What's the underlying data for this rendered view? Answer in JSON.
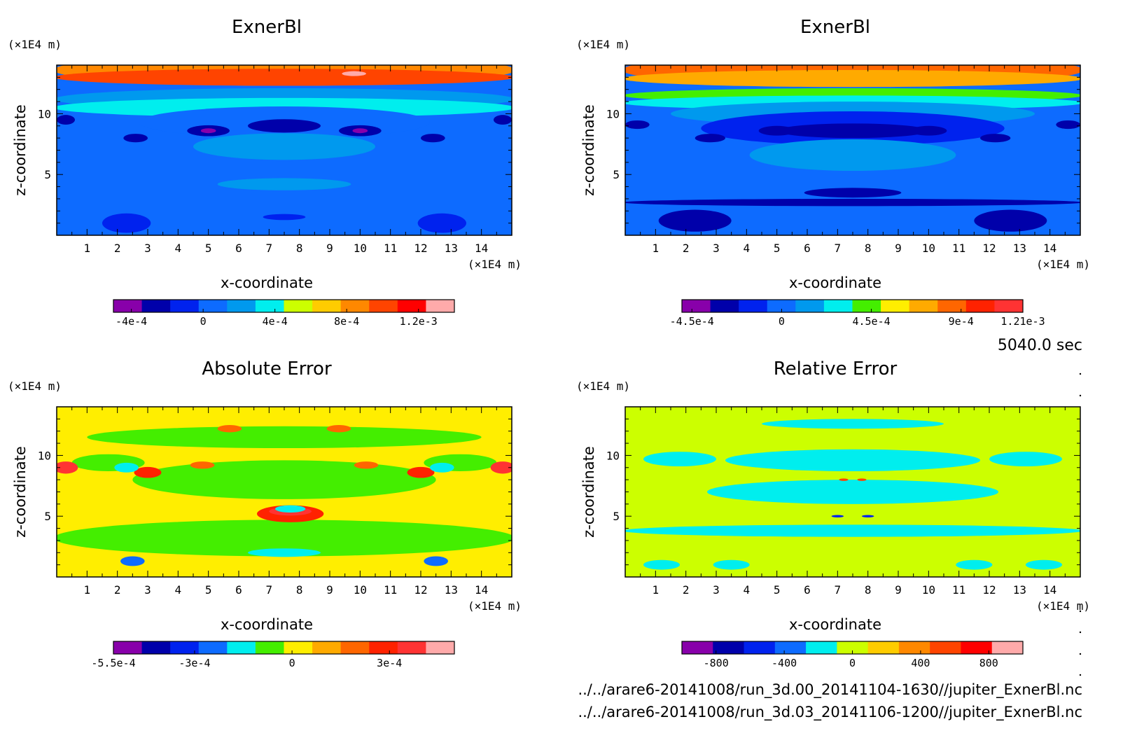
{
  "figure": {
    "time_label": "5040.0 sec",
    "file_paths": [
      "../../arare6-20141008/run_3d.00_20141104-1630//jupiter_ExnerBl.nc",
      "../../arare6-20141008/run_3d.03_20141106-1200//jupiter_ExnerBl.nc"
    ]
  },
  "chart_data": [
    {
      "type": "heatmap",
      "title": "ExnerBl",
      "xlabel": "x-coordinate",
      "ylabel": "z-coordinate",
      "x_unit": "(×1E4 m)",
      "y_unit": "(×1E4 m)",
      "xlim": [
        0,
        15
      ],
      "ylim": [
        0,
        14
      ],
      "x_ticks": [
        "1",
        "2",
        "3",
        "4",
        "5",
        "6",
        "7",
        "8",
        "9",
        "10",
        "11",
        "12",
        "13",
        "14"
      ],
      "y_ticks": [
        "5",
        "10"
      ],
      "colorbar": {
        "range": [
          -0.0005,
          0.0014
        ],
        "colors": [
          "#8800aa",
          "#0000aa",
          "#0022ee",
          "#0d6bff",
          "#0099ee",
          "#00eeee",
          "#ccff00",
          "#ffcc00",
          "#ff8800",
          "#ff4400",
          "#ff0000",
          "#ffaaaa"
        ],
        "tick_labels": [
          "-4e-4",
          "0",
          "4e-4",
          "8e-4",
          "1.2e-3"
        ],
        "tick_values": [
          -0.0004,
          0,
          0.0004,
          0.0008,
          0.0012
        ]
      }
    },
    {
      "type": "heatmap",
      "title": "ExnerBl",
      "xlabel": "x-coordinate",
      "ylabel": "z-coordinate",
      "x_unit": "(×1E4 m)",
      "y_unit": "(×1E4 m)",
      "xlim": [
        0,
        15
      ],
      "ylim": [
        0,
        14
      ],
      "x_ticks": [
        "1",
        "2",
        "3",
        "4",
        "5",
        "6",
        "7",
        "8",
        "9",
        "10",
        "11",
        "12",
        "13",
        "14"
      ],
      "y_ticks": [
        "5",
        "10"
      ],
      "colorbar": {
        "range": [
          -0.0005,
          0.00121
        ],
        "colors": [
          "#8800aa",
          "#0000aa",
          "#0022ee",
          "#0d6bff",
          "#0099ee",
          "#00eeee",
          "#44ee00",
          "#ffee00",
          "#ffaa00",
          "#ff6600",
          "#ff2200",
          "#ff3333"
        ],
        "tick_labels": [
          "-4.5e-4",
          "0",
          "4.5e-4",
          "9e-4",
          "1.21e-3"
        ],
        "tick_values": [
          -0.00045,
          0,
          0.00045,
          0.0009,
          0.00121
        ]
      }
    },
    {
      "type": "heatmap",
      "title": "Absolute Error",
      "xlabel": "x-coordinate",
      "ylabel": "z-coordinate",
      "x_unit": "(×1E4 m)",
      "y_unit": "(×1E4 m)",
      "xlim": [
        0,
        15
      ],
      "ylim": [
        0,
        14
      ],
      "x_ticks": [
        "1",
        "2",
        "3",
        "4",
        "5",
        "6",
        "7",
        "8",
        "9",
        "10",
        "11",
        "12",
        "13",
        "14"
      ],
      "y_ticks": [
        "5",
        "10"
      ],
      "colorbar": {
        "range": [
          -0.00055,
          0.0005
        ],
        "colors": [
          "#8800aa",
          "#0000aa",
          "#0022ee",
          "#0d6bff",
          "#00eeee",
          "#44ee00",
          "#ffee00",
          "#ffaa00",
          "#ff6600",
          "#ff2200",
          "#ff3333",
          "#ffaaaa"
        ],
        "tick_labels": [
          "-5.5e-4",
          "-3e-4",
          "0",
          "3e-4"
        ],
        "tick_values": [
          -0.00055,
          -0.0003,
          0,
          0.0003
        ]
      }
    },
    {
      "type": "heatmap",
      "title": "Relative Error",
      "xlabel": "x-coordinate",
      "ylabel": "z-coordinate",
      "x_unit": "(×1E4 m)",
      "y_unit": "(×1E4 m)",
      "xlim": [
        0,
        15
      ],
      "ylim": [
        0,
        14
      ],
      "x_ticks": [
        "1",
        "2",
        "3",
        "4",
        "5",
        "6",
        "7",
        "8",
        "9",
        "10",
        "11",
        "12",
        "13",
        "14"
      ],
      "y_ticks": [
        "5",
        "10"
      ],
      "colorbar": {
        "range": [
          -1000,
          1000
        ],
        "colors": [
          "#8800aa",
          "#0000aa",
          "#0022ee",
          "#0d6bff",
          "#00eeee",
          "#ccff00",
          "#ffcc00",
          "#ff8800",
          "#ff4400",
          "#ff0000",
          "#ffaaaa"
        ],
        "tick_labels": [
          "-800",
          "-400",
          "0",
          "400",
          "800"
        ],
        "tick_values": [
          -800,
          -400,
          0,
          400,
          800
        ]
      }
    }
  ]
}
